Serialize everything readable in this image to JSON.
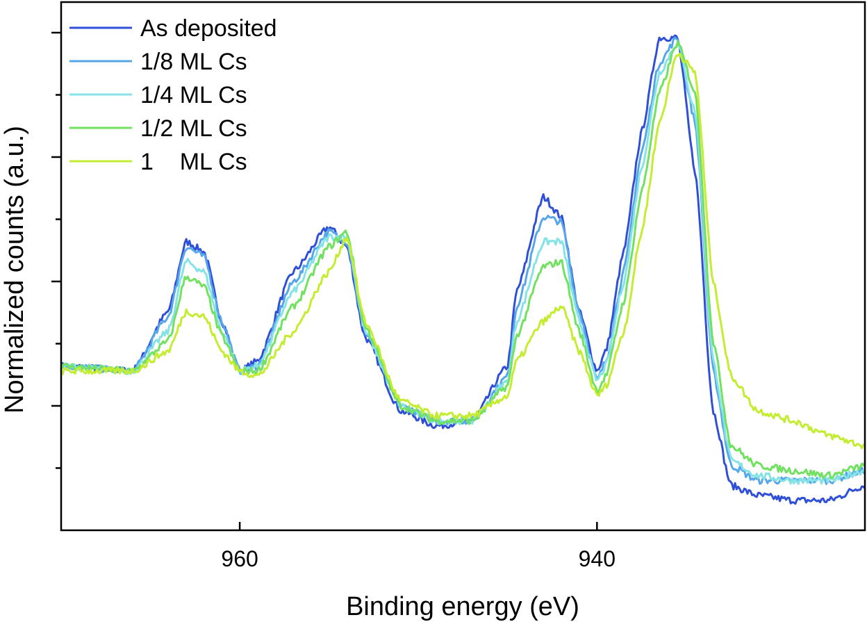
{
  "chart_data": {
    "type": "line",
    "title": "",
    "xlabel": "Binding energy (eV)",
    "ylabel": "Normalized counts (a.u.)",
    "x_reversed": true,
    "xlim": [
      970,
      925
    ],
    "ylim": [
      0,
      1
    ],
    "x_ticks": [
      {
        "value": 960,
        "label": "960"
      },
      {
        "value": 940,
        "label": "940"
      }
    ],
    "y_ticks_unlabeled": [
      0.125,
      0.25,
      0.375,
      0.5,
      0.625,
      0.75,
      0.875,
      1.0
    ],
    "legend_position": "top-left",
    "series": [
      {
        "name": "As deposited",
        "color": "#2f4fd6",
        "x": [
          970,
          966,
          964,
          963,
          962,
          961,
          960,
          959,
          957,
          955,
          954,
          953,
          951,
          949,
          947,
          945,
          944.5,
          943,
          942,
          941,
          940,
          939.5,
          938.5,
          937.5,
          936.5,
          935.5,
          934.5,
          933.5,
          932.5,
          931,
          929,
          927,
          925
        ],
        "y": [
          0.33,
          0.32,
          0.44,
          0.58,
          0.56,
          0.42,
          0.32,
          0.34,
          0.52,
          0.61,
          0.57,
          0.39,
          0.24,
          0.21,
          0.22,
          0.33,
          0.48,
          0.67,
          0.63,
          0.44,
          0.32,
          0.36,
          0.56,
          0.8,
          0.99,
          0.99,
          0.72,
          0.24,
          0.09,
          0.07,
          0.06,
          0.06,
          0.09
        ]
      },
      {
        "name": "1/8 ML Cs",
        "color": "#56a6ea",
        "x": [
          970,
          966,
          964,
          963,
          962,
          961,
          960,
          959,
          957,
          955,
          954,
          953,
          951,
          949,
          947,
          945,
          944.5,
          943,
          942,
          941,
          940,
          939.5,
          938.5,
          937.5,
          936.5,
          935.5,
          934.5,
          933.5,
          932.5,
          931,
          929,
          927,
          925
        ],
        "y": [
          0.33,
          0.32,
          0.43,
          0.57,
          0.55,
          0.42,
          0.32,
          0.33,
          0.5,
          0.6,
          0.58,
          0.4,
          0.25,
          0.22,
          0.22,
          0.31,
          0.45,
          0.63,
          0.62,
          0.44,
          0.3,
          0.34,
          0.52,
          0.76,
          0.94,
          0.99,
          0.82,
          0.32,
          0.13,
          0.1,
          0.1,
          0.1,
          0.12
        ]
      },
      {
        "name": "1/4 ML Cs",
        "color": "#86e3e5",
        "x": [
          970,
          966,
          964,
          963,
          962,
          961,
          960,
          959,
          957,
          955,
          954,
          953,
          951,
          949,
          947,
          945,
          944.5,
          943,
          942,
          941,
          940,
          939.5,
          938.5,
          937.5,
          936.5,
          935.5,
          934.5,
          933.5,
          932.5,
          931,
          929,
          927,
          925
        ],
        "y": [
          0.33,
          0.32,
          0.4,
          0.54,
          0.52,
          0.4,
          0.32,
          0.33,
          0.48,
          0.59,
          0.59,
          0.4,
          0.25,
          0.22,
          0.22,
          0.3,
          0.42,
          0.58,
          0.58,
          0.42,
          0.3,
          0.33,
          0.5,
          0.73,
          0.92,
          0.98,
          0.84,
          0.34,
          0.14,
          0.11,
          0.1,
          0.1,
          0.12
        ]
      },
      {
        "name": "1/2 ML Cs",
        "color": "#72e060",
        "x": [
          970,
          966,
          964,
          963,
          962,
          961,
          960,
          959,
          957,
          955,
          954,
          953,
          951,
          949,
          947,
          945,
          944.5,
          943,
          942,
          941,
          940,
          939.5,
          938.5,
          937.5,
          936.5,
          935.5,
          934.5,
          933.5,
          932.5,
          931,
          929,
          927,
          925
        ],
        "y": [
          0.33,
          0.32,
          0.38,
          0.51,
          0.49,
          0.39,
          0.32,
          0.32,
          0.45,
          0.57,
          0.6,
          0.41,
          0.25,
          0.22,
          0.22,
          0.29,
          0.39,
          0.53,
          0.54,
          0.4,
          0.28,
          0.31,
          0.46,
          0.68,
          0.88,
          0.98,
          0.88,
          0.38,
          0.17,
          0.13,
          0.12,
          0.11,
          0.13
        ]
      },
      {
        "name": "1    ML Cs",
        "color": "#c4ec30",
        "x": [
          970,
          966,
          964,
          963,
          962,
          961,
          960,
          959,
          957,
          955,
          954,
          953,
          951,
          949,
          947,
          945,
          944.5,
          943,
          942,
          941,
          940,
          939.5,
          938.5,
          937.5,
          936.5,
          935.5,
          934.5,
          933.5,
          932.5,
          931,
          929,
          927,
          925
        ],
        "y": [
          0.32,
          0.32,
          0.36,
          0.44,
          0.43,
          0.36,
          0.32,
          0.31,
          0.4,
          0.52,
          0.59,
          0.42,
          0.26,
          0.23,
          0.23,
          0.27,
          0.34,
          0.42,
          0.45,
          0.36,
          0.27,
          0.29,
          0.4,
          0.6,
          0.82,
          0.96,
          0.92,
          0.5,
          0.31,
          0.24,
          0.22,
          0.19,
          0.17
        ]
      }
    ]
  }
}
